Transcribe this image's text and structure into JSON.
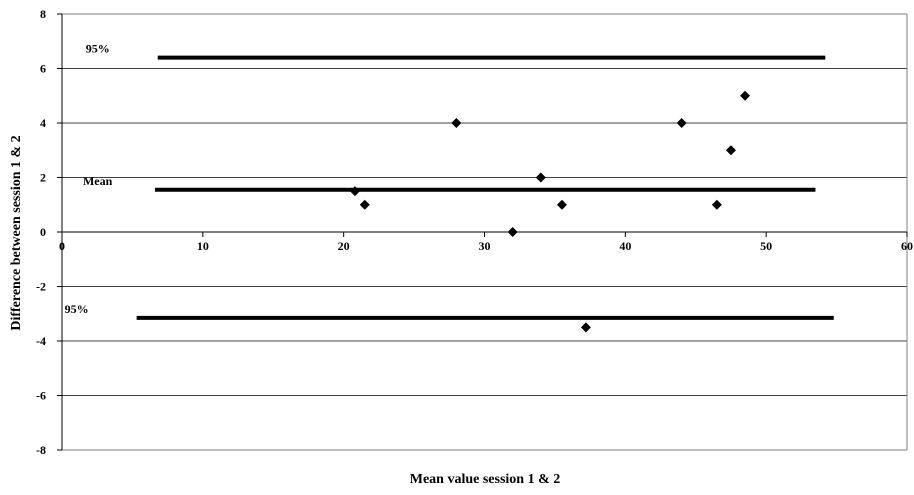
{
  "chart_data": {
    "type": "scatter",
    "title": "",
    "xlabel": "Mean value session 1 & 2",
    "ylabel": "Difference between session 1 & 2",
    "xlim": [
      0,
      60
    ],
    "ylim": [
      -8,
      8
    ],
    "x_ticks": [
      0,
      10,
      20,
      30,
      40,
      50,
      60
    ],
    "y_ticks": [
      -8,
      -6,
      -4,
      -2,
      0,
      2,
      4,
      6,
      8
    ],
    "grid": "horizontal",
    "legend": "none",
    "marker_color": "#000000",
    "series": [
      {
        "x": [
          20.8,
          21.5,
          28.0,
          32.0,
          34.0,
          35.5,
          37.2,
          44.0,
          46.5,
          47.5,
          48.5
        ],
        "y": [
          1.5,
          1.0,
          4.0,
          0.0,
          2.0,
          1.0,
          -3.5,
          4.0,
          1.0,
          3.0,
          5.0
        ]
      }
    ],
    "reference_lines": [
      {
        "label": "95%",
        "y": 6.4,
        "x_range": [
          6.8,
          54.2
        ]
      },
      {
        "label": "Mean",
        "y": 1.55,
        "x_range": [
          6.6,
          53.5
        ]
      },
      {
        "label": "95%",
        "y": -3.15,
        "x_range": [
          5.3,
          54.8
        ]
      }
    ]
  }
}
